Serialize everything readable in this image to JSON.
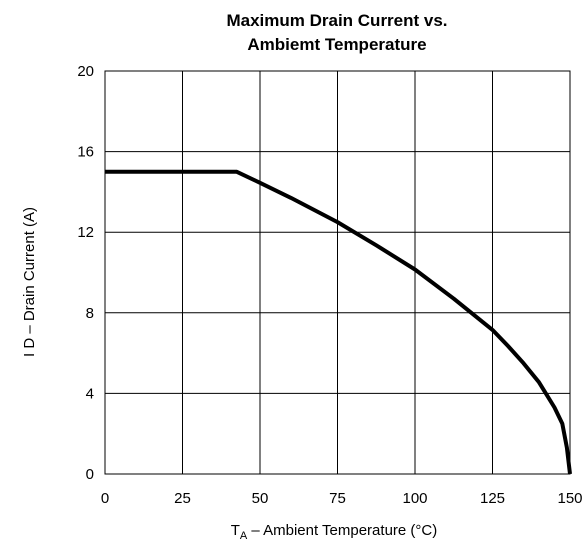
{
  "chart_data": {
    "type": "line",
    "title_lines": [
      "Maximum Drain Current vs.",
      "Ambiemt Temperature"
    ],
    "xlabel": {
      "main": "T",
      "subscript": "A",
      "rest": " – Ambient Temperature (°C)"
    },
    "ylabel": "I D – Drain Current (A)",
    "xlim": [
      0,
      150
    ],
    "ylim": [
      0,
      20
    ],
    "xticks": [
      0,
      25,
      50,
      75,
      100,
      125,
      150
    ],
    "yticks": [
      0,
      4,
      8,
      12,
      16,
      20
    ],
    "grid": true,
    "line_color": "#000000",
    "series": [
      {
        "x": [
          0,
          42.5,
          50,
          60,
          75,
          87.5,
          100,
          112.5,
          125,
          130,
          135,
          140,
          145,
          147.5,
          149,
          150
        ],
        "y": [
          15,
          15,
          14.45,
          13.7,
          12.5,
          11.35,
          10.15,
          8.7,
          7.15,
          6.35,
          5.5,
          4.55,
          3.3,
          2.5,
          1.3,
          0
        ]
      }
    ]
  }
}
